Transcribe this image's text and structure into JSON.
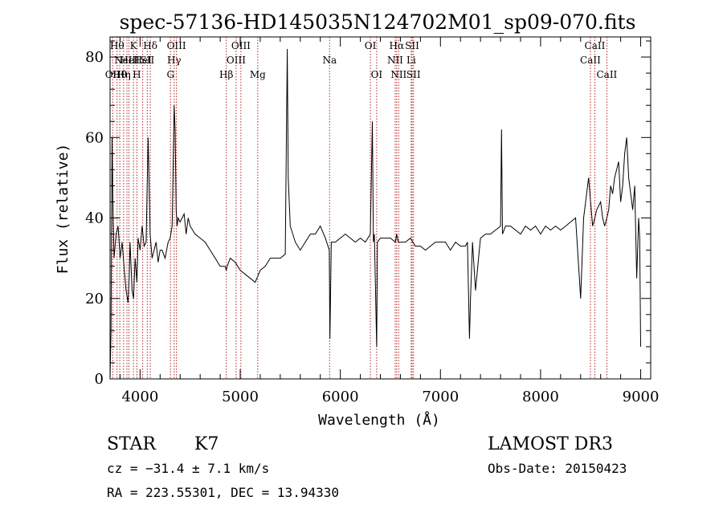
{
  "chart_data": {
    "type": "line",
    "title": "spec-57136-HD145035N124702M01_sp09-070.fits",
    "xlabel": "Wavelength (Å)",
    "ylabel": "Flux (relative)",
    "xlim": [
      3700,
      9100
    ],
    "ylim": [
      0,
      85
    ],
    "xticks": [
      4000,
      5000,
      6000,
      7000,
      8000,
      9000
    ],
    "yticks": [
      0,
      20,
      40,
      60,
      80
    ],
    "grid": false,
    "line_color": "#000000",
    "marker_color": "#b22222",
    "series": [
      {
        "x": [
          3700,
          3710,
          3720,
          3730,
          3740,
          3760,
          3780,
          3800,
          3820,
          3840,
          3860,
          3880,
          3890,
          3900,
          3920,
          3934,
          3950,
          3968,
          3980,
          4000,
          4020,
          4040,
          4060,
          4080,
          4100,
          4120,
          4140,
          4160,
          4180,
          4200,
          4220,
          4250,
          4280,
          4300,
          4320,
          4340,
          4350,
          4360,
          4370,
          4380,
          4400,
          4420,
          4440,
          4460,
          4480,
          4500,
          4550,
          4600,
          4650,
          4700,
          4750,
          4800,
          4850,
          4861,
          4870,
          4900,
          4950,
          5000,
          5050,
          5100,
          5150,
          5200,
          5250,
          5300,
          5350,
          5400,
          5450,
          5470,
          5480,
          5500,
          5550,
          5600,
          5650,
          5700,
          5750,
          5800,
          5850,
          5890,
          5896,
          5910,
          5950,
          6000,
          6050,
          6100,
          6150,
          6200,
          6250,
          6300,
          6320,
          6330,
          6340,
          6363,
          6370,
          6400,
          6450,
          6500,
          6550,
          6563,
          6580,
          6600,
          6650,
          6700,
          6750,
          6800,
          6850,
          6900,
          6950,
          7000,
          7050,
          7100,
          7150,
          7200,
          7250,
          7270,
          7290,
          7300,
          7320,
          7350,
          7400,
          7450,
          7500,
          7550,
          7600,
          7610,
          7620,
          7650,
          7700,
          7750,
          7800,
          7850,
          7900,
          7950,
          8000,
          8050,
          8100,
          8150,
          8200,
          8250,
          8300,
          8350,
          8400,
          8430,
          8450,
          8480,
          8500,
          8520,
          8542,
          8560,
          8600,
          8620,
          8640,
          8662,
          8680,
          8700,
          8720,
          8740,
          8760,
          8780,
          8800,
          8820,
          8840,
          8860,
          8880,
          8900,
          8920,
          8940,
          8960,
          8980,
          8990,
          9000
        ],
        "y": [
          0,
          12,
          60,
          42,
          30,
          36,
          38,
          30,
          34,
          28,
          22,
          19,
          25,
          34,
          22,
          20,
          30,
          24,
          35,
          32,
          38,
          33,
          34,
          60,
          36,
          30,
          32,
          34,
          29,
          32,
          32,
          30,
          34,
          35,
          38,
          68,
          62,
          42,
          38,
          40,
          39,
          40,
          41,
          36,
          40,
          38,
          36,
          35,
          34,
          32,
          30,
          28,
          28,
          27,
          28,
          30,
          29,
          27,
          26,
          25,
          24,
          27,
          28,
          30,
          30,
          30,
          31,
          82,
          50,
          38,
          34,
          32,
          34,
          36,
          36,
          38,
          35,
          32,
          10,
          34,
          34,
          35,
          36,
          35,
          34,
          35,
          34,
          36,
          64,
          34,
          36,
          8,
          34,
          35,
          35,
          35,
          34,
          36,
          34,
          34,
          34,
          35,
          33,
          33,
          32,
          33,
          34,
          34,
          34,
          32,
          34,
          33,
          33,
          34,
          10,
          20,
          34,
          22,
          35,
          36,
          36,
          37,
          38,
          62,
          36,
          38,
          38,
          37,
          36,
          38,
          37,
          38,
          36,
          38,
          37,
          38,
          37,
          38,
          39,
          40,
          20,
          40,
          44,
          50,
          44,
          38,
          40,
          42,
          44,
          40,
          38,
          40,
          42,
          48,
          46,
          50,
          52,
          54,
          44,
          48,
          56,
          60,
          50,
          46,
          42,
          48,
          25,
          40,
          35,
          8
        ]
      }
    ],
    "line_markers": [
      {
        "x": 3727,
        "label": "OII",
        "row": 2
      },
      {
        "x": 3770,
        "label": "Hθ",
        "row": 0
      },
      {
        "x": 3797,
        "label": "Hθ",
        "row": 2
      },
      {
        "x": 3835,
        "label": "Hη",
        "row": 2
      },
      {
        "x": 3869,
        "label": "NeIII",
        "row": 1
      },
      {
        "x": 3889,
        "label": "HeI",
        "row": 1
      },
      {
        "x": 3934,
        "label": "K",
        "row": 0
      },
      {
        "x": 3968,
        "label": "H",
        "row": 2
      },
      {
        "x": 4026,
        "label": "HeI",
        "row": 1
      },
      {
        "x": 4072,
        "label": "SII",
        "row": 1
      },
      {
        "x": 4102,
        "label": "Hδ",
        "row": 0
      },
      {
        "x": 4304,
        "label": "G",
        "row": 2
      },
      {
        "x": 4340,
        "label": "Hγ",
        "row": 1
      },
      {
        "x": 4363,
        "label": "OIII",
        "row": 0
      },
      {
        "x": 4861,
        "label": "Hβ",
        "row": 2
      },
      {
        "x": 4959,
        "label": "OIII",
        "row": 1
      },
      {
        "x": 5007,
        "label": "OIII",
        "row": 0
      },
      {
        "x": 5175,
        "label": "Mg",
        "row": 2
      },
      {
        "x": 5893,
        "label": "Na",
        "row": 1
      },
      {
        "x": 6300,
        "label": "OI",
        "row": 0
      },
      {
        "x": 6363,
        "label": "OI",
        "row": 2
      },
      {
        "x": 6548,
        "label": "NII",
        "row": 1
      },
      {
        "x": 6563,
        "label": "Hα",
        "row": 0
      },
      {
        "x": 6583,
        "label": "NII",
        "row": 2
      },
      {
        "x": 6708,
        "label": "Li",
        "row": 1
      },
      {
        "x": 6717,
        "label": "SII",
        "row": 0
      },
      {
        "x": 6731,
        "label": "SII",
        "row": 2
      },
      {
        "x": 8498,
        "label": "CaII",
        "row": 1
      },
      {
        "x": 8542,
        "label": "CaII",
        "row": 0
      },
      {
        "x": 8662,
        "label": "CaII",
        "row": 2
      }
    ]
  },
  "info": {
    "object_class": "STAR",
    "subclass": "K7",
    "survey": "LAMOST DR3",
    "cz_line": "cz = −31.4 ± 7.1 km/s",
    "obs_date": "Obs-Date: 20150423",
    "coords": "RA = 223.55301, DEC =  13.94330"
  }
}
